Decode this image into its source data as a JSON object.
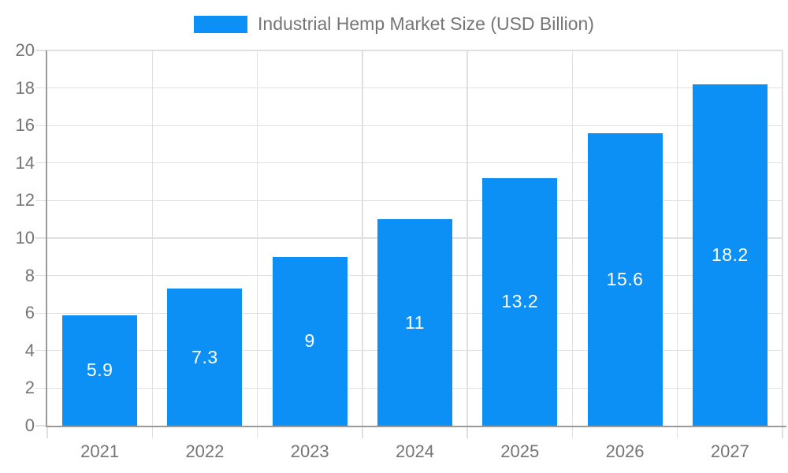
{
  "chart_data": {
    "type": "bar",
    "title": "Industrial Hemp Market Size (USD Billion)",
    "legend": {
      "position": "top-center",
      "entries": [
        "Industrial Hemp Market Size (USD Billion)"
      ]
    },
    "categories": [
      "2021",
      "2022",
      "2023",
      "2024",
      "2025",
      "2026",
      "2027"
    ],
    "values": [
      5.9,
      7.3,
      9,
      11,
      13.2,
      15.6,
      18.2
    ],
    "data_labels": [
      "5.9",
      "7.3",
      "9",
      "11",
      "13.2",
      "15.6",
      "18.2"
    ],
    "xlabel": "",
    "ylabel": "",
    "ylim": [
      0,
      20
    ],
    "ytick_step": 2,
    "ytick_labels": [
      "0",
      "2",
      "4",
      "6",
      "8",
      "10",
      "12",
      "14",
      "16",
      "18",
      "20"
    ],
    "grid": true,
    "colors": {
      "bar": "#0c90f5",
      "data_label": "#ffffff",
      "axis_label": "#757575",
      "legend_text": "#757575",
      "gridline": "#e0e0e0",
      "axis_line": "#9a9a9a",
      "background": "#ffffff"
    }
  }
}
